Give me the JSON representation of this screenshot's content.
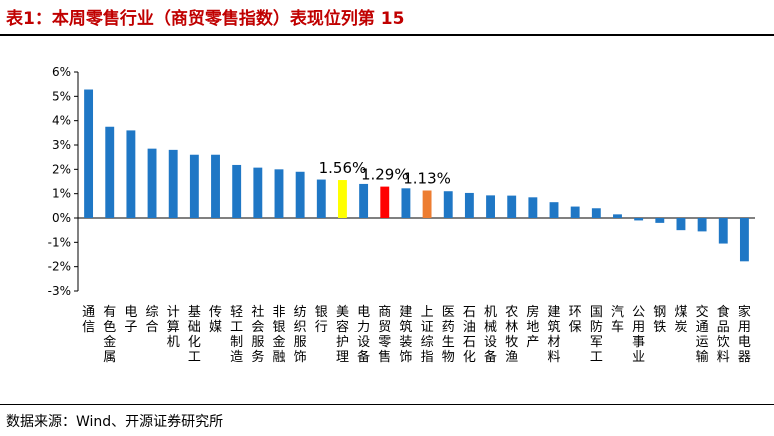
{
  "header": {
    "title": "表1：本周零售行业（商贸零售指数）表现位列第 15"
  },
  "footer": {
    "source": "数据来源：Wind、开源证券研究所"
  },
  "colors": {
    "default_bar": "#1F77C5",
    "highlight_yellow": "#FFFF00",
    "highlight_red": "#FF0000",
    "highlight_orange": "#ED7D31",
    "title": "#C00000"
  },
  "chart_data": {
    "type": "bar",
    "title": "",
    "xlabel": "",
    "ylabel": "",
    "ylim": [
      -3,
      6
    ],
    "ytick_values": [
      -3,
      -2,
      -1,
      0,
      1,
      2,
      3,
      4,
      5,
      6
    ],
    "ytick_labels": [
      "-3%",
      "-2%",
      "-1%",
      "0%",
      "1%",
      "2%",
      "3%",
      "4%",
      "5%",
      "6%"
    ],
    "grid": false,
    "legend": "none",
    "categories": [
      "通信",
      "有色金属",
      "电子",
      "综合",
      "计算机",
      "基础化工",
      "传媒",
      "轻工制造",
      "社会服务",
      "非银金融",
      "纺织服饰",
      "银行",
      "美容护理",
      "电力设备",
      "商贸零售",
      "建筑装饰",
      "上证综指",
      "医药生物",
      "石油石化",
      "机械设备",
      "农林牧渔",
      "房地产",
      "建筑材料",
      "环保",
      "国防军工",
      "汽车",
      "公用事业",
      "钢铁",
      "煤炭",
      "交通运输",
      "食品饮料",
      "家用电器"
    ],
    "values": [
      5.28,
      3.75,
      3.6,
      2.85,
      2.8,
      2.6,
      2.6,
      2.18,
      2.07,
      2.0,
      1.9,
      1.58,
      1.56,
      1.4,
      1.29,
      1.22,
      1.13,
      1.1,
      1.03,
      0.93,
      0.92,
      0.85,
      0.65,
      0.47,
      0.4,
      0.15,
      -0.1,
      -0.2,
      -0.5,
      -0.55,
      -1.05,
      -1.78
    ],
    "highlights": [
      {
        "category": "美容护理",
        "color": "highlight_yellow",
        "label": "1.56%"
      },
      {
        "category": "商贸零售",
        "color": "highlight_red",
        "label": "1.29%"
      },
      {
        "category": "上证综指",
        "color": "highlight_orange",
        "label": "1.13%"
      }
    ]
  }
}
